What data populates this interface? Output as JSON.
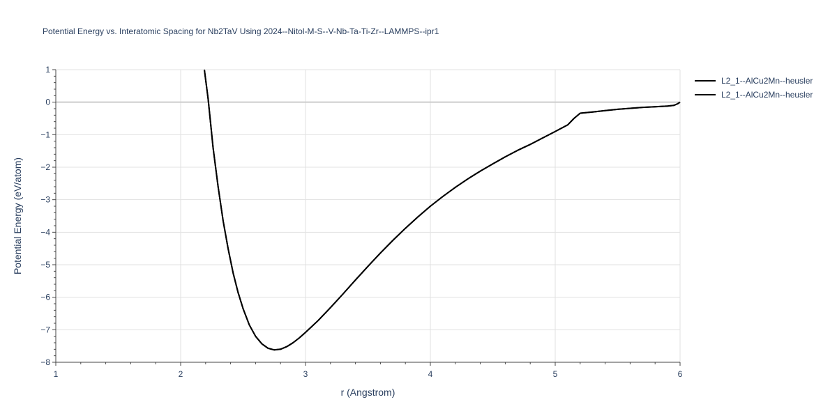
{
  "chart_data": {
    "type": "line",
    "title": "Potential Energy vs. Interatomic Spacing for Nb2TaV Using 2024--Nitol-M-S--V-Nb-Ta-Ti-Zr--LAMMPS--ipr1",
    "xlabel": "r (Angstrom)",
    "ylabel": "Potential Energy (eV/atom)",
    "xlim": [
      1,
      6
    ],
    "ylim": [
      -8,
      1
    ],
    "x_ticks": [
      1,
      2,
      3,
      4,
      5,
      6
    ],
    "y_ticks": [
      1,
      0,
      -1,
      -2,
      -3,
      -4,
      -5,
      -6,
      -7,
      -8
    ],
    "grid": true,
    "legend_position": "top-right",
    "series": [
      {
        "name": "L2_1--AlCu2Mn--heusler",
        "color": "#000000",
        "x": [
          2.19,
          2.22,
          2.26,
          2.3,
          2.34,
          2.38,
          2.42,
          2.46,
          2.5,
          2.55,
          2.6,
          2.65,
          2.7,
          2.75,
          2.8,
          2.85,
          2.9,
          2.95,
          3.0,
          3.1,
          3.2,
          3.3,
          3.4,
          3.5,
          3.6,
          3.7,
          3.8,
          3.9,
          4.0,
          4.1,
          4.2,
          4.3,
          4.4,
          4.5,
          4.6,
          4.7,
          4.8,
          4.9,
          5.0,
          5.1,
          5.15,
          5.2,
          5.3,
          5.4,
          5.5,
          5.6,
          5.7,
          5.8,
          5.9,
          5.95,
          5.98,
          6.0
        ],
        "y": [
          1.0,
          0.1,
          -1.4,
          -2.6,
          -3.65,
          -4.5,
          -5.25,
          -5.85,
          -6.35,
          -6.85,
          -7.2,
          -7.43,
          -7.57,
          -7.62,
          -7.6,
          -7.52,
          -7.4,
          -7.25,
          -7.08,
          -6.72,
          -6.32,
          -5.9,
          -5.47,
          -5.05,
          -4.64,
          -4.25,
          -3.88,
          -3.53,
          -3.2,
          -2.9,
          -2.62,
          -2.36,
          -2.12,
          -1.9,
          -1.68,
          -1.48,
          -1.3,
          -1.1,
          -0.9,
          -0.7,
          -0.5,
          -0.34,
          -0.3,
          -0.26,
          -0.22,
          -0.19,
          -0.16,
          -0.14,
          -0.12,
          -0.1,
          -0.05,
          0.0
        ]
      },
      {
        "name": "L2_1--AlCu2Mn--heusler",
        "color": "#000000",
        "x": [
          2.19,
          2.22,
          2.26,
          2.3,
          2.34,
          2.38,
          2.42,
          2.46,
          2.5,
          2.55,
          2.6,
          2.65,
          2.7,
          2.75,
          2.8,
          2.85,
          2.9,
          2.95,
          3.0,
          3.1,
          3.2,
          3.3,
          3.4,
          3.5,
          3.6,
          3.7,
          3.8,
          3.9,
          4.0,
          4.1,
          4.2,
          4.3,
          4.4,
          4.5,
          4.6,
          4.7,
          4.8,
          4.9,
          5.0,
          5.1,
          5.15,
          5.2,
          5.3,
          5.4,
          5.5,
          5.6,
          5.7,
          5.8,
          5.9,
          5.95,
          5.98,
          6.0
        ],
        "y": [
          1.0,
          0.1,
          -1.4,
          -2.6,
          -3.65,
          -4.5,
          -5.25,
          -5.85,
          -6.35,
          -6.85,
          -7.2,
          -7.43,
          -7.57,
          -7.62,
          -7.6,
          -7.52,
          -7.4,
          -7.25,
          -7.08,
          -6.72,
          -6.32,
          -5.9,
          -5.47,
          -5.05,
          -4.64,
          -4.25,
          -3.88,
          -3.53,
          -3.2,
          -2.9,
          -2.62,
          -2.36,
          -2.12,
          -1.9,
          -1.68,
          -1.48,
          -1.3,
          -1.1,
          -0.9,
          -0.7,
          -0.5,
          -0.34,
          -0.3,
          -0.26,
          -0.22,
          -0.19,
          -0.16,
          -0.14,
          -0.12,
          -0.1,
          -0.05,
          0.0
        ]
      }
    ]
  }
}
